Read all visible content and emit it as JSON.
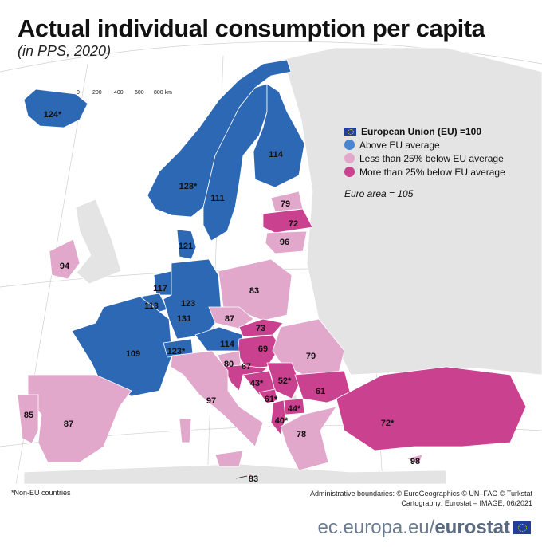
{
  "title": "Actual individual consumption per capita",
  "subtitle": "(in PPS, 2020)",
  "colors": {
    "above": "#2d68b5",
    "less25": "#e2a8cc",
    "more25": "#c9418f",
    "nodata": "#e4e4e4",
    "sea": "#ffffff"
  },
  "scale_bar": {
    "ticks": [
      "0",
      "200",
      "400",
      "600",
      "800 km"
    ]
  },
  "legend": {
    "eu": "European Union (EU) =100",
    "above": "Above EU average",
    "less25": "Less than 25% below EU average",
    "more25": "More than 25% below EU average",
    "euro_area": "Euro area = 105"
  },
  "regions": [
    {
      "value": "124*",
      "category": "above"
    },
    {
      "value": "128*",
      "category": "above"
    },
    {
      "value": "111",
      "category": "above"
    },
    {
      "value": "114",
      "category": "above"
    },
    {
      "value": "79",
      "category": "less25"
    },
    {
      "value": "72",
      "category": "more25"
    },
    {
      "value": "96",
      "category": "less25"
    },
    {
      "value": "121",
      "category": "above"
    },
    {
      "value": "94",
      "category": "less25"
    },
    {
      "value": "117",
      "category": "above"
    },
    {
      "value": "113",
      "category": "above"
    },
    {
      "value": "131",
      "category": "above"
    },
    {
      "value": "123",
      "category": "above"
    },
    {
      "value": "83",
      "category": "less25"
    },
    {
      "value": "87",
      "category": "less25"
    },
    {
      "value": "109",
      "category": "above"
    },
    {
      "value": "123*",
      "category": "above"
    },
    {
      "value": "114",
      "category": "above"
    },
    {
      "value": "73",
      "category": "more25"
    },
    {
      "value": "69",
      "category": "more25"
    },
    {
      "value": "79",
      "category": "less25"
    },
    {
      "value": "80",
      "category": "less25"
    },
    {
      "value": "67",
      "category": "more25"
    },
    {
      "value": "43*",
      "category": "more25"
    },
    {
      "value": "52*",
      "category": "more25"
    },
    {
      "value": "61*",
      "category": "more25"
    },
    {
      "value": "44*",
      "category": "more25"
    },
    {
      "value": "40*",
      "category": "more25"
    },
    {
      "value": "61",
      "category": "more25"
    },
    {
      "value": "78",
      "category": "less25"
    },
    {
      "value": "97",
      "category": "less25"
    },
    {
      "value": "87",
      "category": "less25"
    },
    {
      "value": "85",
      "category": "less25"
    },
    {
      "value": "72*",
      "category": "more25"
    },
    {
      "value": "98",
      "category": "less25"
    },
    {
      "value": "83",
      "category": "less25"
    }
  ],
  "footnote": "*Non-EU countries",
  "credits": {
    "line1": "Administrative boundaries: © EuroGeographics © UN–FAO © Turkstat",
    "line2": "Cartography: Eurostat – IMAGE, 06/2021"
  },
  "brand": {
    "prefix": "ec.europa.eu/",
    "name": "eurostat"
  }
}
